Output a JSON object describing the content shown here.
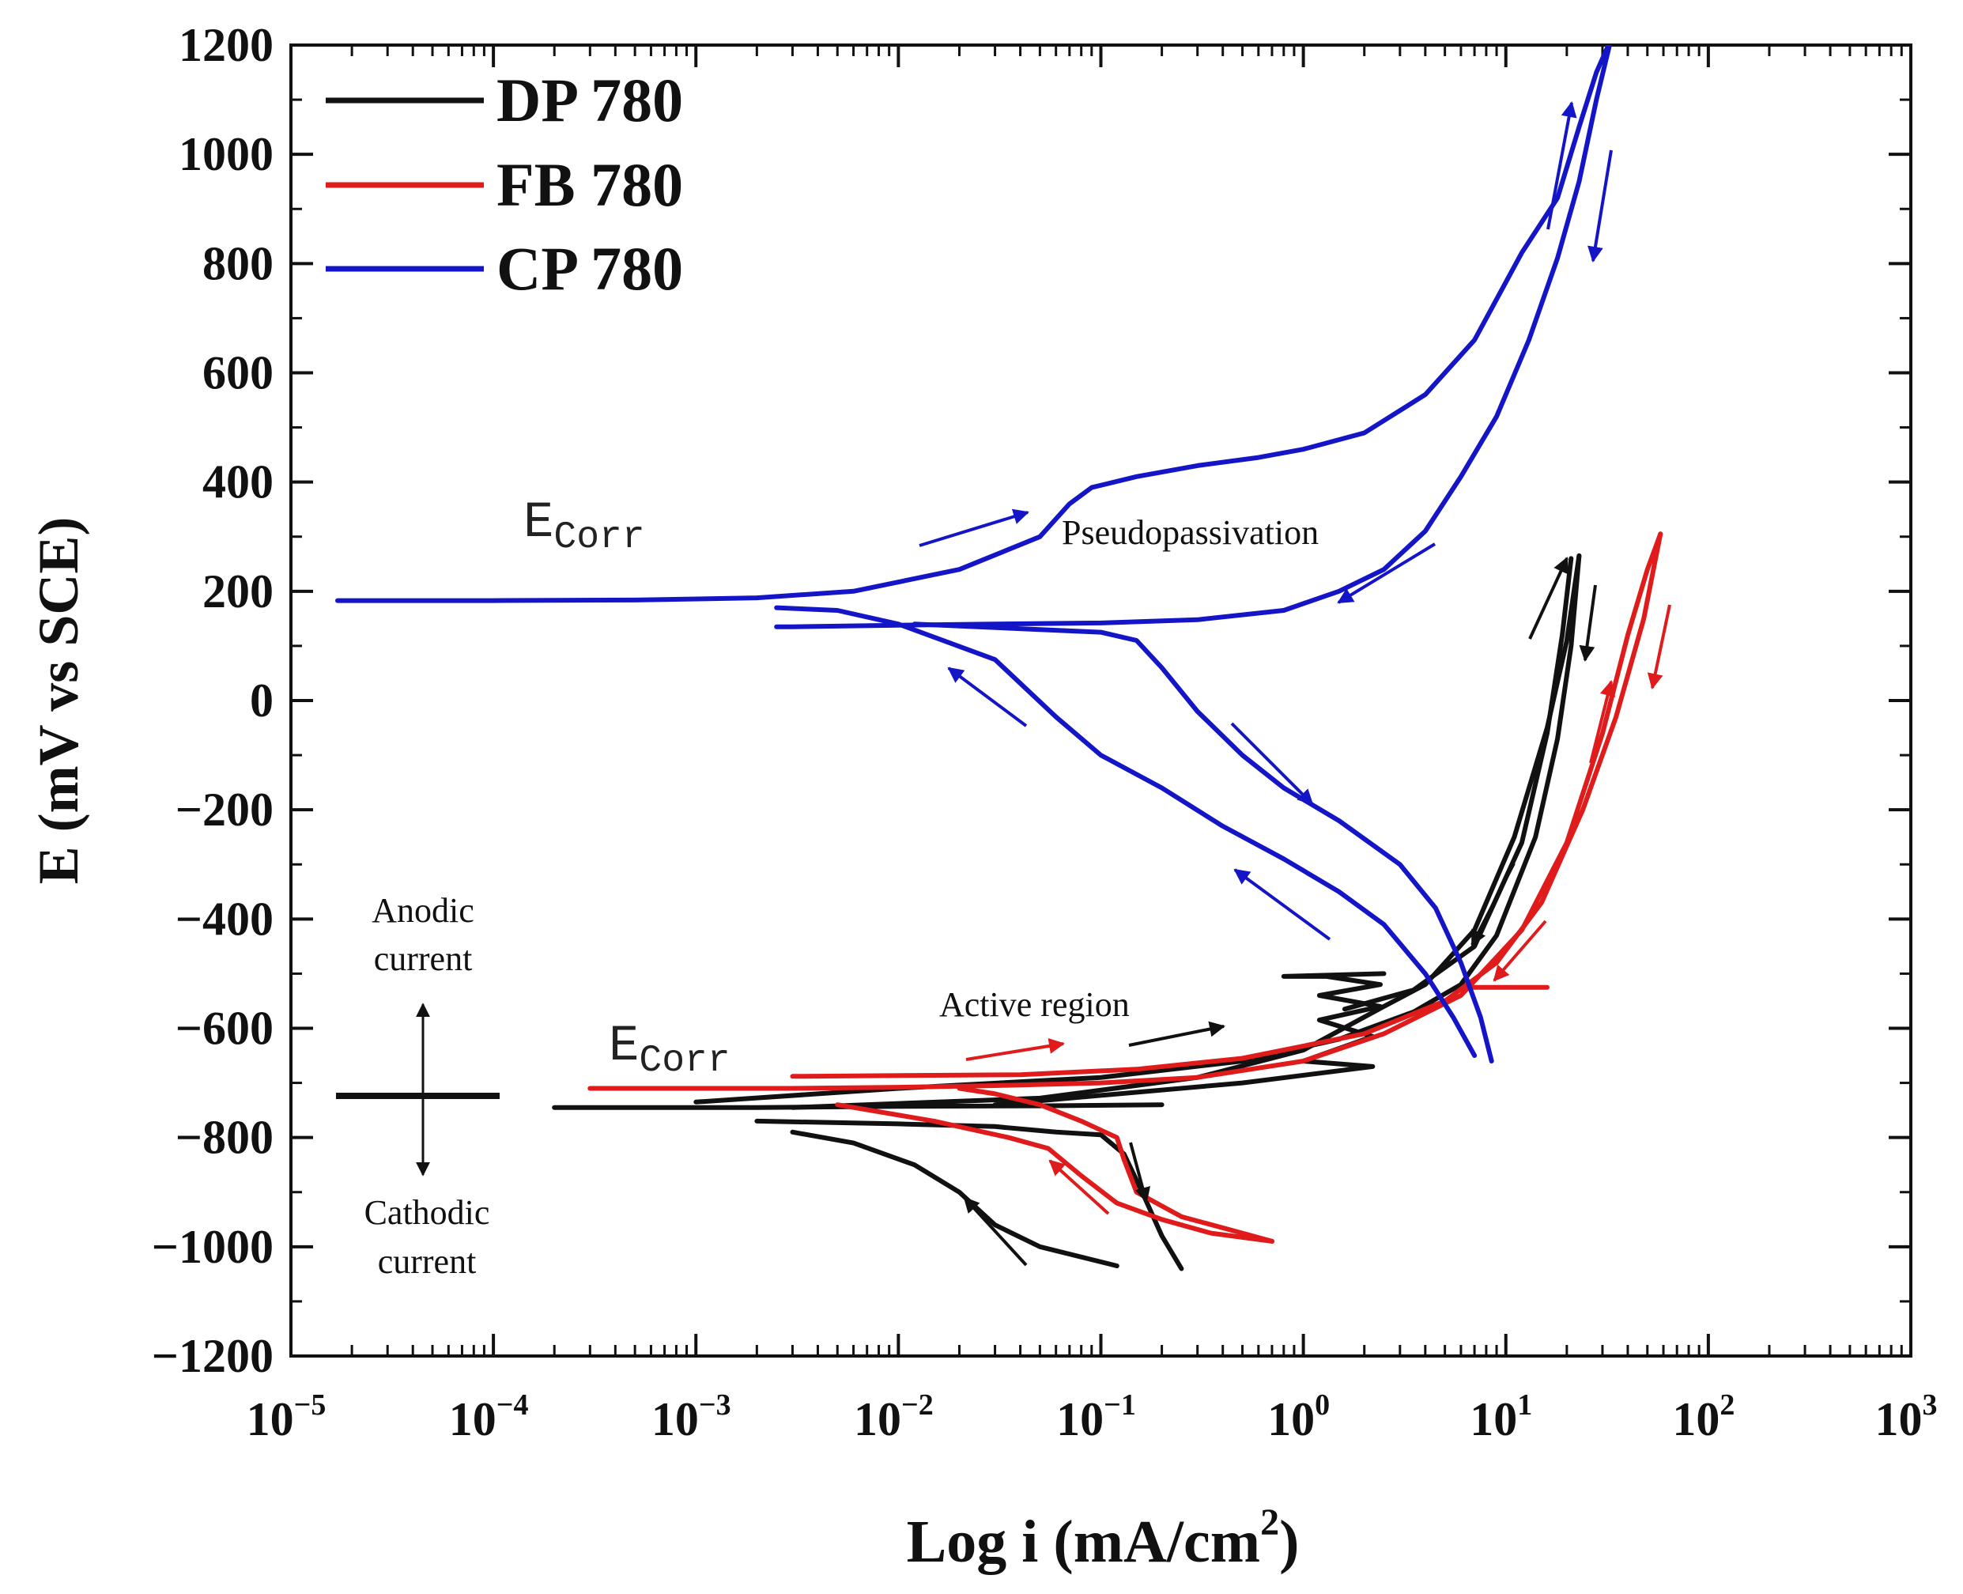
{
  "chart_data": {
    "type": "line",
    "title": "",
    "xlabel": "Log i (mA/cm",
    "xlabel_sup": "2",
    "xlabel_close": ")",
    "ylabel": "E (mV vs SCE)",
    "xscale": "log",
    "xlim": [
      1e-05,
      1000
    ],
    "ylim": [
      -1200,
      1200
    ],
    "x_ticks": [
      {
        "value": 1e-05,
        "base": "10",
        "exp": "−5"
      },
      {
        "value": 0.0001,
        "base": "10",
        "exp": "−4"
      },
      {
        "value": 0.001,
        "base": "10",
        "exp": "−3"
      },
      {
        "value": 0.01,
        "base": "10",
        "exp": "−2"
      },
      {
        "value": 0.1,
        "base": "10",
        "exp": "−1"
      },
      {
        "value": 1,
        "base": "10",
        "exp": "0"
      },
      {
        "value": 10,
        "base": "10",
        "exp": "1"
      },
      {
        "value": 100,
        "base": "10",
        "exp": "2"
      },
      {
        "value": 1000,
        "base": "10",
        "exp": "3"
      }
    ],
    "y_ticks": [
      {
        "value": 1200,
        "label": "1200"
      },
      {
        "value": 1000,
        "label": "1000"
      },
      {
        "value": 800,
        "label": "800"
      },
      {
        "value": 600,
        "label": "600"
      },
      {
        "value": 400,
        "label": "400"
      },
      {
        "value": 200,
        "label": "200"
      },
      {
        "value": 0,
        "label": "0"
      },
      {
        "value": -200,
        "label": "−200"
      },
      {
        "value": -400,
        "label": "−400"
      },
      {
        "value": -600,
        "label": "−600"
      },
      {
        "value": -800,
        "label": "−800"
      },
      {
        "value": -1000,
        "label": "−1000"
      },
      {
        "value": -1200,
        "label": "−1200"
      }
    ],
    "legend_position": "top-left",
    "series": [
      {
        "name": "DP 780",
        "color": "#111111",
        "segments": [
          [
            [
              0.25,
              -1040
            ],
            [
              0.2,
              -980
            ],
            [
              0.16,
              -900
            ],
            [
              0.13,
              -830
            ],
            [
              0.1,
              -795
            ],
            [
              0.06,
              -790
            ],
            [
              0.03,
              -780
            ],
            [
              0.01,
              -775
            ],
            [
              0.002,
              -770
            ]
          ],
          [
            [
              0.12,
              -1035
            ],
            [
              0.05,
              -1000
            ],
            [
              0.03,
              -960
            ],
            [
              0.02,
              -900
            ],
            [
              0.012,
              -850
            ],
            [
              0.006,
              -810
            ],
            [
              0.003,
              -790
            ]
          ],
          [
            [
              0.0002,
              -745
            ],
            [
              0.002,
              -745
            ],
            [
              0.01,
              -743
            ],
            [
              0.05,
              -742
            ],
            [
              0.2,
              -740
            ]
          ],
          [
            [
              0.003,
              -745
            ],
            [
              0.05,
              -728
            ],
            [
              0.3,
              -690
            ],
            [
              1,
              -640
            ],
            [
              2.5,
              -560
            ],
            [
              4,
              -520
            ],
            [
              7,
              -420
            ],
            [
              11,
              -250
            ],
            [
              16,
              -50
            ],
            [
              20,
              110
            ],
            [
              23,
              265
            ]
          ],
          [
            [
              23,
              265
            ],
            [
              21,
              100
            ],
            [
              18,
              -70
            ],
            [
              14,
              -250
            ],
            [
              9,
              -430
            ],
            [
              6,
              -520
            ],
            [
              3.5,
              -570
            ],
            [
              1.5,
              -620
            ],
            [
              0.5,
              -660
            ],
            [
              0.1,
              -690
            ],
            [
              0.01,
              -710
            ],
            [
              0.001,
              -735
            ]
          ],
          [
            [
              0.03,
              -740
            ],
            [
              0.5,
              -700
            ],
            [
              2.2,
              -670
            ],
            [
              1,
              -660
            ],
            [
              2.2,
              -615
            ],
            [
              1.2,
              -585
            ],
            [
              2.4,
              -560
            ],
            [
              1.2,
              -540
            ],
            [
              2.4,
              -520
            ],
            [
              1.3,
              -505
            ],
            [
              0.8,
              -505
            ],
            [
              2.5,
              -500
            ]
          ],
          [
            [
              21,
              260
            ],
            [
              19,
              120
            ],
            [
              16,
              -60
            ],
            [
              12,
              -260
            ],
            [
              7,
              -450
            ],
            [
              3.5,
              -530
            ],
            [
              1.6,
              -565
            ]
          ]
        ]
      },
      {
        "name": "FB 780",
        "color": "#e01b1b",
        "segments": [
          [
            [
              0.0003,
              -710
            ],
            [
              0.003,
              -710
            ],
            [
              0.01,
              -708
            ],
            [
              0.03,
              -705
            ],
            [
              0.1,
              -700
            ],
            [
              0.3,
              -690
            ],
            [
              1,
              -660
            ],
            [
              2.5,
              -610
            ],
            [
              6,
              -540
            ],
            [
              12,
              -420
            ],
            [
              20,
              -260
            ],
            [
              30,
              -60
            ],
            [
              40,
              120
            ],
            [
              50,
              240
            ],
            [
              58,
              305
            ]
          ],
          [
            [
              58,
              305
            ],
            [
              48,
              150
            ],
            [
              35,
              -30
            ],
            [
              24,
              -200
            ],
            [
              15,
              -370
            ],
            [
              9,
              -480
            ],
            [
              5,
              -550
            ],
            [
              2,
              -610
            ],
            [
              0.5,
              -655
            ],
            [
              0.15,
              -675
            ],
            [
              0.04,
              -685
            ],
            [
              0.003,
              -688
            ]
          ],
          [
            [
              16,
              -525
            ],
            [
              8,
              -525
            ],
            [
              6.5,
              -525
            ]
          ],
          [
            [
              0.7,
              -990
            ],
            [
              0.5,
              -975
            ],
            [
              0.25,
              -945
            ],
            [
              0.15,
              -900
            ],
            [
              0.13,
              -840
            ],
            [
              0.12,
              -800
            ],
            [
              0.08,
              -770
            ],
            [
              0.05,
              -740
            ],
            [
              0.03,
              -720
            ],
            [
              0.02,
              -710
            ]
          ],
          [
            [
              0.7,
              -990
            ],
            [
              0.35,
              -975
            ],
            [
              0.2,
              -950
            ],
            [
              0.12,
              -920
            ],
            [
              0.08,
              -870
            ],
            [
              0.055,
              -820
            ],
            [
              0.035,
              -800
            ],
            [
              0.015,
              -770
            ],
            [
              0.005,
              -740
            ]
          ]
        ]
      },
      {
        "name": "CP 780",
        "color": "#1515c8",
        "segments": [
          [
            [
              1.7e-05,
              183
            ],
            [
              0.0001,
              183
            ],
            [
              0.0005,
              184
            ],
            [
              0.002,
              188
            ],
            [
              0.006,
              200
            ],
            [
              0.02,
              240
            ],
            [
              0.05,
              300
            ],
            [
              0.07,
              360
            ],
            [
              0.09,
              390
            ],
            [
              0.15,
              410
            ],
            [
              0.3,
              430
            ],
            [
              0.6,
              445
            ],
            [
              1,
              460
            ],
            [
              2,
              490
            ],
            [
              4,
              560
            ],
            [
              7,
              660
            ],
            [
              12,
              820
            ],
            [
              18,
              920
            ],
            [
              23,
              1050
            ],
            [
              28,
              1150
            ],
            [
              33,
              1210
            ]
          ],
          [
            [
              33,
              1210
            ],
            [
              28,
              1100
            ],
            [
              23,
              950
            ],
            [
              18,
              810
            ],
            [
              13,
              660
            ],
            [
              9,
              520
            ],
            [
              6,
              410
            ],
            [
              4,
              310
            ],
            [
              2.5,
              240
            ],
            [
              1.5,
              200
            ],
            [
              0.8,
              165
            ],
            [
              0.3,
              148
            ],
            [
              0.1,
              142
            ],
            [
              0.03,
              140
            ],
            [
              0.01,
              138
            ],
            [
              0.003,
              135
            ],
            [
              0.0025,
              135
            ]
          ],
          [
            [
              0.0025,
              170
            ],
            [
              0.005,
              165
            ],
            [
              0.01,
              140
            ],
            [
              0.03,
              75
            ],
            [
              0.06,
              -30
            ],
            [
              0.1,
              -100
            ],
            [
              0.2,
              -160
            ],
            [
              0.4,
              -230
            ],
            [
              0.8,
              -290
            ],
            [
              1.5,
              -350
            ],
            [
              2.5,
              -410
            ],
            [
              4,
              -500
            ],
            [
              5.5,
              -580
            ],
            [
              7,
              -650
            ]
          ],
          [
            [
              0.012,
              140
            ],
            [
              0.05,
              130
            ],
            [
              0.1,
              125
            ],
            [
              0.15,
              110
            ],
            [
              0.2,
              60
            ],
            [
              0.3,
              -20
            ],
            [
              0.5,
              -100
            ],
            [
              0.8,
              -160
            ],
            [
              1.5,
              -220
            ],
            [
              3,
              -300
            ],
            [
              4.5,
              -380
            ],
            [
              6,
              -480
            ],
            [
              7.5,
              -580
            ],
            [
              8.5,
              -660
            ]
          ]
        ]
      }
    ],
    "annotations": {
      "ecorr": "E",
      "ecorr_sub": "Corr",
      "pseudopassivation": "Pseudopassivation",
      "active_region": "Active region",
      "anodic_line1": "Anodic",
      "anodic_line2": "current",
      "cathodic_line1": "Cathodic",
      "cathodic_line2": "current"
    }
  }
}
